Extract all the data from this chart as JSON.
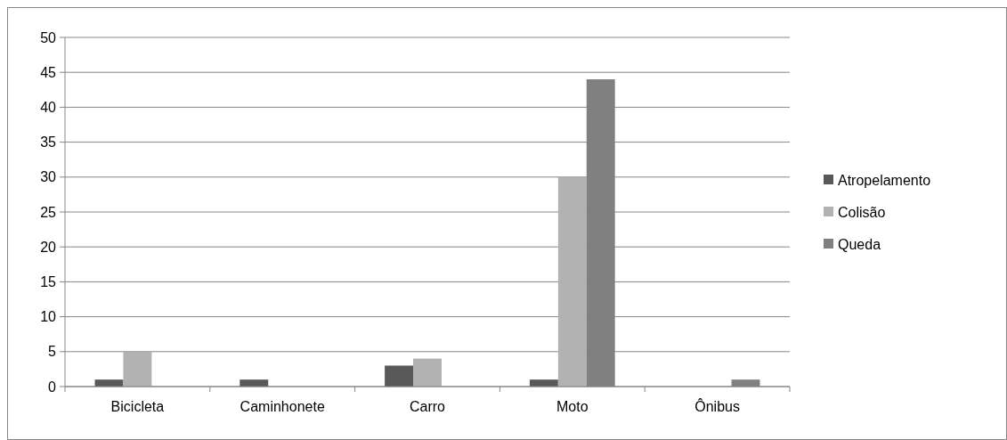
{
  "chart_data": {
    "type": "bar",
    "categories": [
      "Bicicleta",
      "Caminhonete",
      "Carro",
      "Moto",
      "Ônibus"
    ],
    "series": [
      {
        "name": "Atropelamento",
        "color": "#595959",
        "values": [
          1,
          1,
          3,
          1,
          0
        ]
      },
      {
        "name": "Colisão",
        "color": "#b2b2b2",
        "values": [
          5,
          0,
          4,
          30,
          0
        ]
      },
      {
        "name": "Queda",
        "color": "#808080",
        "values": [
          0,
          0,
          0,
          44,
          1
        ]
      }
    ],
    "ylim": [
      0,
      50
    ],
    "yticks": [
      0,
      5,
      10,
      15,
      20,
      25,
      30,
      35,
      40,
      45,
      50
    ],
    "grid": "y",
    "legend": "right"
  }
}
